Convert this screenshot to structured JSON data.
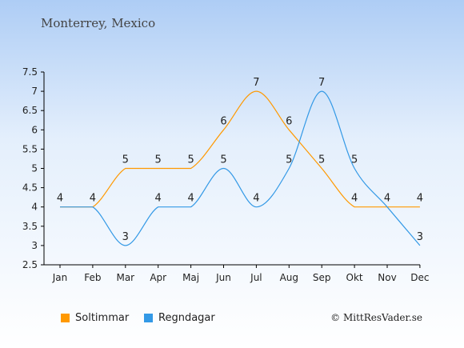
{
  "title": "Monterrey, Mexico",
  "copyright": "© MittResVader.se",
  "chart_data": {
    "type": "line",
    "categories": [
      "Jan",
      "Feb",
      "Mar",
      "Apr",
      "Maj",
      "Jun",
      "Jul",
      "Aug",
      "Sep",
      "Okt",
      "Nov",
      "Dec"
    ],
    "ylim": [
      2.5,
      7.5
    ],
    "yticks": [
      "2.5",
      "3",
      "3.5",
      "4",
      "4.5",
      "5",
      "5.5",
      "6",
      "6.5",
      "7",
      "7.5"
    ],
    "grid": false,
    "legend_position": "bottom-left",
    "series": [
      {
        "name": "Soltimmar",
        "color": "#ff9900",
        "values": [
          4,
          4,
          5,
          5,
          5,
          6,
          7,
          6,
          5,
          4,
          4,
          4
        ]
      },
      {
        "name": "Regndagar",
        "color": "#3399e6",
        "values": [
          4,
          4,
          3,
          4,
          4,
          5,
          4,
          5,
          7,
          5,
          4,
          3
        ]
      }
    ]
  }
}
